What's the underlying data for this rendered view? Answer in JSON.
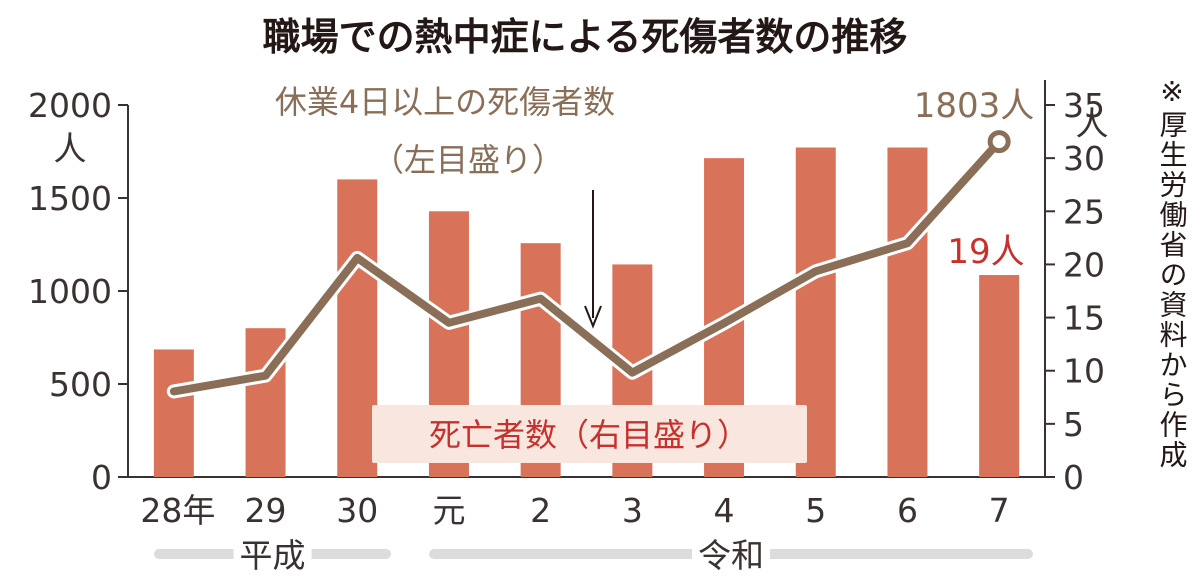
{
  "title": "職場での熱中症による死傷者数の推移",
  "source_note": "※厚生労働省の資料から作成",
  "colors": {
    "bar": "#d8735a",
    "line": "#8a6e57",
    "axis": "#3a3230",
    "death_label": "#c8302b",
    "label_box": "#f8e6df",
    "era_band": "#dcdcdc"
  },
  "chart_data": {
    "type": "bar+line",
    "categories": [
      "28年",
      "29",
      "30",
      "元",
      "2",
      "3",
      "4",
      "5",
      "6",
      "7"
    ],
    "era_groups": [
      {
        "label": "平成",
        "categories": [
          "28年",
          "29",
          "30"
        ]
      },
      {
        "label": "令和",
        "categories": [
          "元",
          "2",
          "3",
          "4",
          "5",
          "6",
          "7"
        ]
      }
    ],
    "left_axis": {
      "unit": "人",
      "ylim": [
        0,
        2000
      ],
      "ticks": [
        0,
        500,
        1000,
        1500,
        2000
      ]
    },
    "right_axis": {
      "unit": "人",
      "ylim": [
        0,
        35
      ],
      "ticks": [
        0,
        5,
        10,
        15,
        20,
        25,
        30,
        35
      ]
    },
    "series": [
      {
        "name": "死亡者数（右目盛り）",
        "type": "bar",
        "axis": "right",
        "values": [
          12,
          14,
          28,
          25,
          22,
          20,
          30,
          31,
          31,
          19
        ],
        "last_label": "19人"
      },
      {
        "name": "休業4日以上の死傷者数",
        "axis_note": "（左目盛り）",
        "type": "line",
        "axis": "left",
        "values": [
          460,
          545,
          1178,
          829,
          959,
          561,
          827,
          1106,
          1257,
          1803
        ],
        "last_label": "1803人"
      }
    ]
  }
}
